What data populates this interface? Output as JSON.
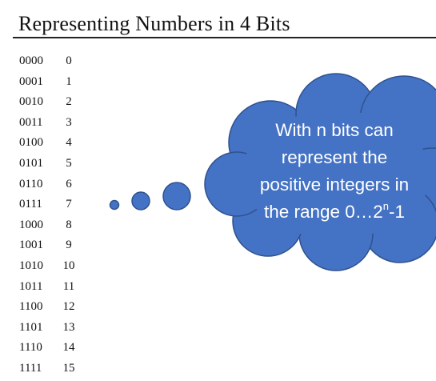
{
  "slide": {
    "title": "Representing Numbers in 4 Bits"
  },
  "rows": [
    {
      "binary": "0000",
      "decimal": "0"
    },
    {
      "binary": "0001",
      "decimal": "1"
    },
    {
      "binary": "0010",
      "decimal": "2"
    },
    {
      "binary": "0011",
      "decimal": "3"
    },
    {
      "binary": "0100",
      "decimal": "4"
    },
    {
      "binary": "0101",
      "decimal": "5"
    },
    {
      "binary": "0110",
      "decimal": "6"
    },
    {
      "binary": "0111",
      "decimal": "7"
    },
    {
      "binary": "1000",
      "decimal": "8"
    },
    {
      "binary": "1001",
      "decimal": "9"
    },
    {
      "binary": "1010",
      "decimal": "10"
    },
    {
      "binary": "1011",
      "decimal": "11"
    },
    {
      "binary": "1100",
      "decimal": "12"
    },
    {
      "binary": "1101",
      "decimal": "13"
    },
    {
      "binary": "1110",
      "decimal": "14"
    },
    {
      "binary": "1111",
      "decimal": "15"
    }
  ],
  "callout": {
    "line1": "With n bits can",
    "line2": "represent the",
    "line3": "positive integers in",
    "line4_pre": "the range 0…2",
    "line4_sup": "n",
    "line4_post": "-1",
    "fill_color": "#4472c4",
    "stroke_color": "#2f528f"
  },
  "colors": {
    "text": "#111111",
    "background": "#ffffff"
  }
}
